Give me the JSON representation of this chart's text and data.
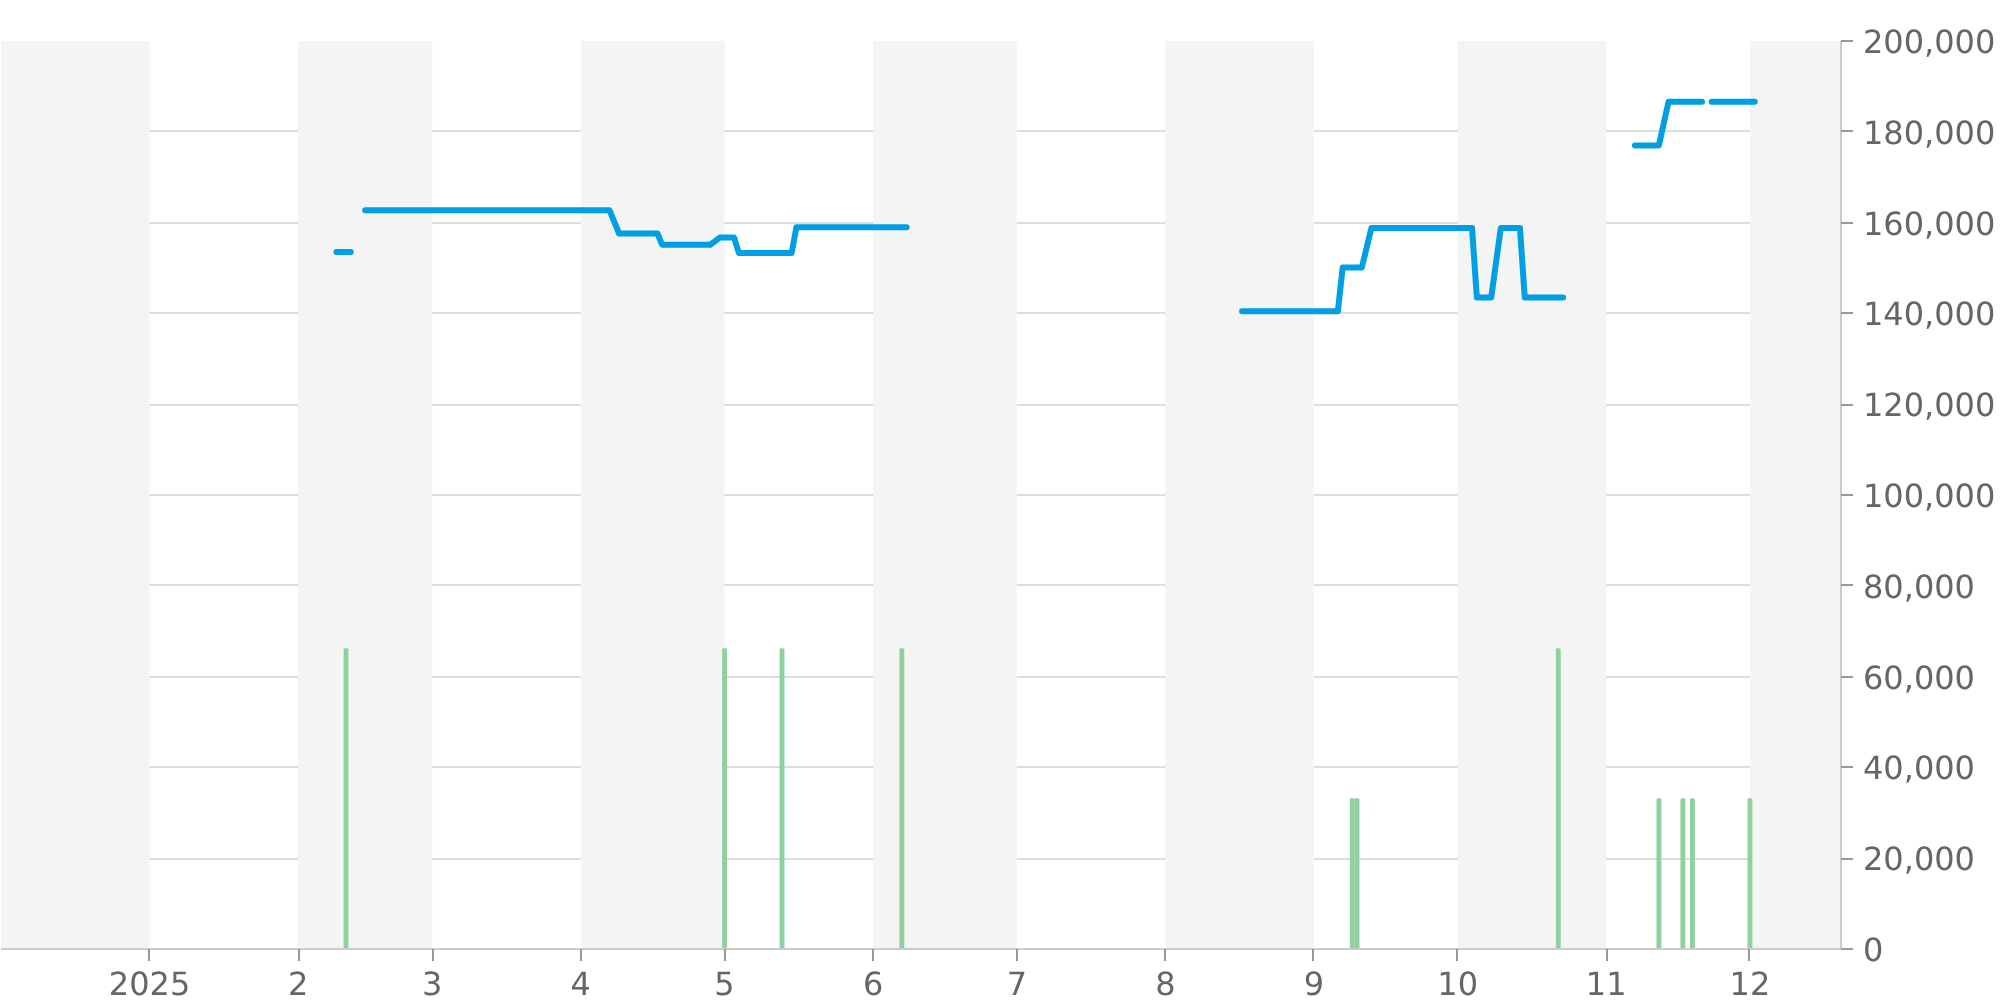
{
  "chart_data": {
    "type": "line",
    "xlim": [
      "2024-12-01",
      "2025-12-20"
    ],
    "xticks": [
      {
        "value": "2025-01-01",
        "label": "2025"
      },
      {
        "value": "2025-02-01",
        "label": "2"
      },
      {
        "value": "2025-03-01",
        "label": "3"
      },
      {
        "value": "2025-04-01",
        "label": "4"
      },
      {
        "value": "2025-05-01",
        "label": "5"
      },
      {
        "value": "2025-06-01",
        "label": "6"
      },
      {
        "value": "2025-07-01",
        "label": "7"
      },
      {
        "value": "2025-08-01",
        "label": "8"
      },
      {
        "value": "2025-09-01",
        "label": "9"
      },
      {
        "value": "2025-10-01",
        "label": "10"
      },
      {
        "value": "2025-11-01",
        "label": "11"
      },
      {
        "value": "2025-12-01",
        "label": "12"
      }
    ],
    "ylim": [
      0,
      200000
    ],
    "yticks": [
      {
        "value": 0,
        "label": "0"
      },
      {
        "value": 20000,
        "label": "20,000"
      },
      {
        "value": 40000,
        "label": "40,000"
      },
      {
        "value": 60000,
        "label": "60,000"
      },
      {
        "value": 80000,
        "label": "80,000"
      },
      {
        "value": 100000,
        "label": "100,000"
      },
      {
        "value": 120000,
        "label": "120,000"
      },
      {
        "value": 140000,
        "label": "140,000"
      },
      {
        "value": 160000,
        "label": "160,000"
      },
      {
        "value": 180000,
        "label": "180,000"
      },
      {
        "value": 200000,
        "label": "200,000"
      }
    ],
    "grid": "y",
    "bands": [
      {
        "axis": "x",
        "from": "2024-12-01",
        "to": "2025-01-01",
        "color": "#f4f4f4"
      },
      {
        "axis": "x",
        "from": "2025-02-01",
        "to": "2025-03-01",
        "color": "#f4f4f4"
      },
      {
        "axis": "x",
        "from": "2025-04-01",
        "to": "2025-05-01",
        "color": "#f4f4f4"
      },
      {
        "axis": "x",
        "from": "2025-06-01",
        "to": "2025-07-01",
        "color": "#f4f4f4"
      },
      {
        "axis": "x",
        "from": "2025-08-01",
        "to": "2025-09-01",
        "color": "#f4f4f4"
      },
      {
        "axis": "x",
        "from": "2025-10-01",
        "to": "2025-11-01",
        "color": "#f4f4f4"
      },
      {
        "axis": "x",
        "from": "2025-12-01",
        "to": "2025-12-20",
        "color": "#f4f4f4"
      }
    ],
    "series": [
      {
        "type": "bar",
        "color": "#8fd19e",
        "x": [
          "2025-02-11",
          "2025-05-01",
          "2025-05-13",
          "2025-06-07",
          "2025-09-09",
          "2025-09-10",
          "2025-10-22",
          "2025-11-12",
          "2025-11-17",
          "2025-11-19",
          "2025-12-01"
        ],
        "values": [
          66000,
          66000,
          66000,
          66000,
          33000,
          33000,
          66000,
          33000,
          33000,
          33000,
          33000
        ]
      },
      {
        "color": "#009fe3",
        "x": [
          "2025-02-09",
          "2025-02-12",
          "2025-02-13",
          "2025-02-15",
          "2025-04-07",
          "2025-04-09",
          "2025-04-17",
          "2025-04-18",
          "2025-04-28",
          "2025-04-30",
          "2025-05-03",
          "2025-05-04",
          "2025-05-15",
          "2025-05-16",
          "2025-06-08",
          "2025-06-09",
          "2025-08-17",
          "2025-09-06",
          "2025-09-07",
          "2025-09-11",
          "2025-09-13",
          "2025-10-04",
          "2025-10-05",
          "2025-10-08",
          "2025-10-10",
          "2025-10-14",
          "2025-10-15",
          "2025-10-23",
          "2025-10-24",
          "2025-11-07",
          "2025-11-12",
          "2025-11-14",
          "2025-11-21",
          "2025-11-22",
          "2025-11-23",
          "2025-12-02"
        ],
        "values": [
          153500,
          153500,
          null,
          162700,
          162700,
          157600,
          157600,
          155100,
          155100,
          156700,
          156700,
          153300,
          153300,
          159000,
          159000,
          null,
          140500,
          140500,
          150100,
          150100,
          158800,
          158800,
          143500,
          143500,
          158800,
          158800,
          143500,
          143500,
          null,
          177000,
          177000,
          186600,
          186600,
          null,
          186600,
          186600
        ]
      }
    ]
  }
}
